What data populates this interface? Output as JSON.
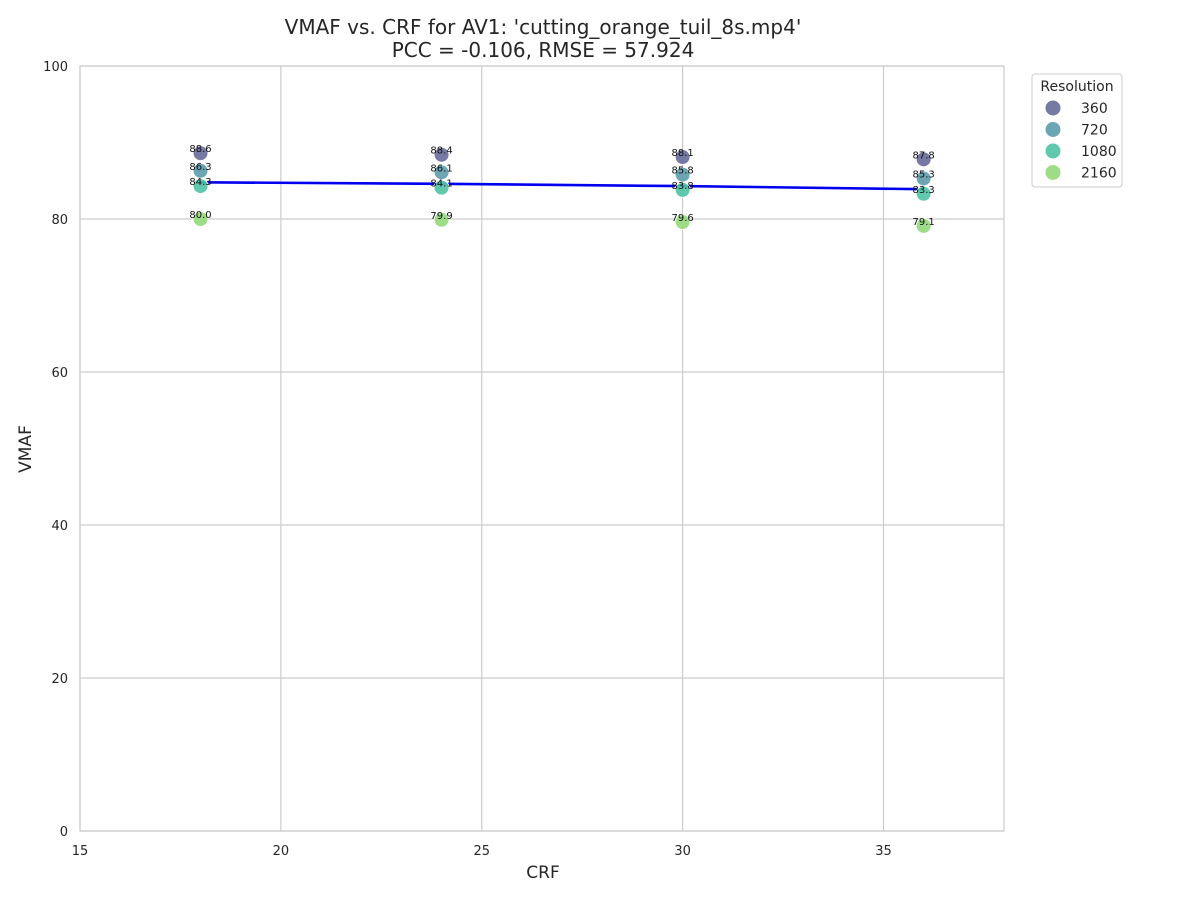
{
  "chart_data": {
    "type": "scatter",
    "title": "VMAF vs. CRF for AV1: 'cutting_orange_tuil_8s.mp4'",
    "subtitle": "PCC = -0.106, RMSE = 57.924",
    "xlabel": "CRF",
    "ylabel": "VMAF",
    "xlim": [
      15,
      38
    ],
    "ylim": [
      0,
      100
    ],
    "xticks": [
      15,
      20,
      25,
      30,
      35
    ],
    "yticks": [
      0,
      20,
      40,
      60,
      80,
      100
    ],
    "grid": true,
    "legend": {
      "title": "Resolution",
      "placement": "outside-top-right"
    },
    "series": [
      {
        "name": "360",
        "color": "#6a6e9c",
        "x": [
          18,
          24,
          30,
          36
        ],
        "y": [
          88.6,
          88.4,
          88.1,
          87.8
        ],
        "labels": [
          "88.6",
          "88.4",
          "88.1",
          "87.8"
        ]
      },
      {
        "name": "720",
        "color": "#5f9eaf",
        "x": [
          18,
          24,
          30,
          36
        ],
        "y": [
          86.3,
          86.1,
          85.8,
          85.3
        ],
        "labels": [
          "86.3",
          "86.1",
          "85.8",
          "85.3"
        ]
      },
      {
        "name": "1080",
        "color": "#52c3a5",
        "x": [
          18,
          24,
          30,
          36
        ],
        "y": [
          84.3,
          84.1,
          83.8,
          83.3
        ],
        "labels": [
          "84.3",
          "84.1",
          "83.8",
          "83.3"
        ]
      },
      {
        "name": "2160",
        "color": "#96da7e",
        "x": [
          18,
          24,
          30,
          36
        ],
        "y": [
          80.0,
          79.9,
          79.6,
          79.1
        ],
        "labels": [
          "80.0",
          "79.9",
          "79.6",
          "79.1"
        ]
      }
    ],
    "trend_line": {
      "color": "#0000ee",
      "x": [
        18,
        24,
        30,
        36
      ],
      "y": [
        84.8,
        84.6,
        84.3,
        83.9
      ]
    }
  }
}
